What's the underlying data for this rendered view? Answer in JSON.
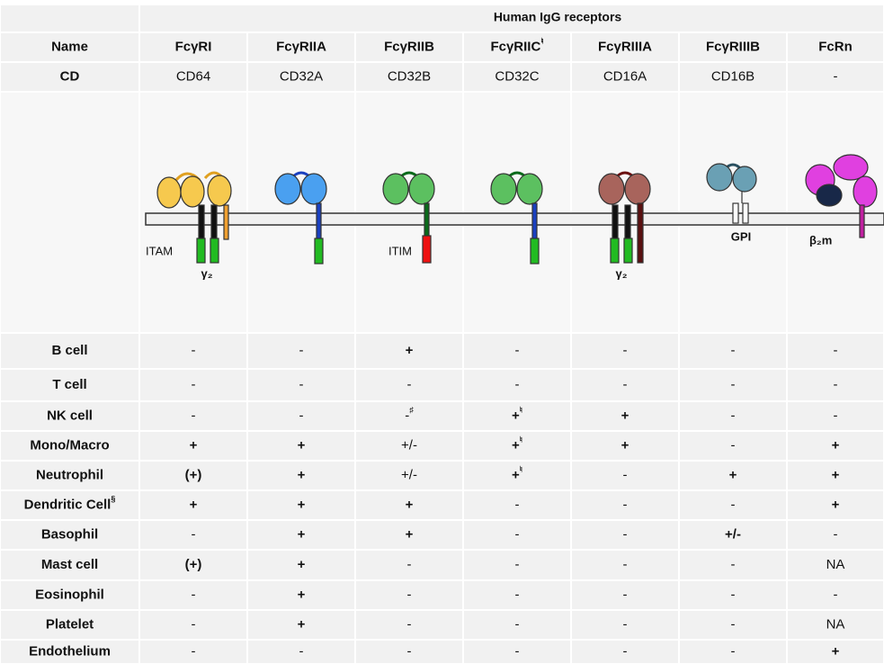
{
  "header": {
    "title": "Human IgG receptors"
  },
  "table": {
    "name_label": "Name",
    "cd_label": "CD",
    "columns": [
      {
        "name": "FcγRI",
        "cd": "CD64"
      },
      {
        "name": "FcγRIIA",
        "cd": "CD32A"
      },
      {
        "name": "FcγRIIB",
        "cd": "CD32B"
      },
      {
        "name": "FcγRIIC",
        "name_sup": "♮",
        "cd": "CD32C"
      },
      {
        "name": "FcγRIIIA",
        "cd": "CD16A"
      },
      {
        "name": "FcγRIIIB",
        "cd": "CD16B"
      },
      {
        "name": "FcRn",
        "cd": "-"
      }
    ],
    "rows": [
      {
        "label": "B cell",
        "values": [
          "-",
          "-",
          "+",
          "-",
          "-",
          "-",
          "-"
        ]
      },
      {
        "label": "T cell",
        "values": [
          "-",
          "-",
          "-",
          "-",
          "-",
          "-",
          "-"
        ]
      },
      {
        "label": "NK cell",
        "values": [
          "-",
          "-",
          {
            "text": "-",
            "sup": "♯"
          },
          {
            "text": "+",
            "sup": "♮"
          },
          "+",
          "-",
          "-"
        ]
      },
      {
        "label": "Mono/Macro",
        "values": [
          "+",
          "+",
          "+/-",
          {
            "text": "+",
            "sup": "♮"
          },
          "+",
          "-",
          "+"
        ]
      },
      {
        "label": "Neutrophil",
        "values": [
          "(+)",
          "+",
          "+/-",
          {
            "text": "+",
            "sup": "♮"
          },
          "-",
          "+",
          "+"
        ]
      },
      {
        "label": "Dendritic Cell",
        "label_sup": "§",
        "values": [
          "+",
          "+",
          "+",
          "-",
          "-",
          "-",
          "+"
        ]
      },
      {
        "label": "Basophil",
        "values": [
          "-",
          "+",
          "+",
          "-",
          "-",
          "+/-",
          "-"
        ]
      },
      {
        "label": "Mast cell",
        "values": [
          "(+)",
          "+",
          "-",
          "-",
          "-",
          "-",
          "NA"
        ]
      },
      {
        "label": "Eosinophil",
        "values": [
          "-",
          "+",
          "-",
          "-",
          "-",
          "-",
          "-"
        ]
      },
      {
        "label": "Platelet",
        "values": [
          "-",
          "+",
          "-",
          "-",
          "-",
          "-",
          "NA"
        ]
      },
      {
        "label": "Endothelium",
        "values": [
          "-",
          "-",
          "-",
          "-",
          "-",
          "-",
          "+"
        ]
      }
    ]
  },
  "diagram": {
    "labels": [
      "ITAM",
      "γ₂",
      "ITIM",
      "γ₂",
      "GPI",
      "β₂m"
    ]
  }
}
